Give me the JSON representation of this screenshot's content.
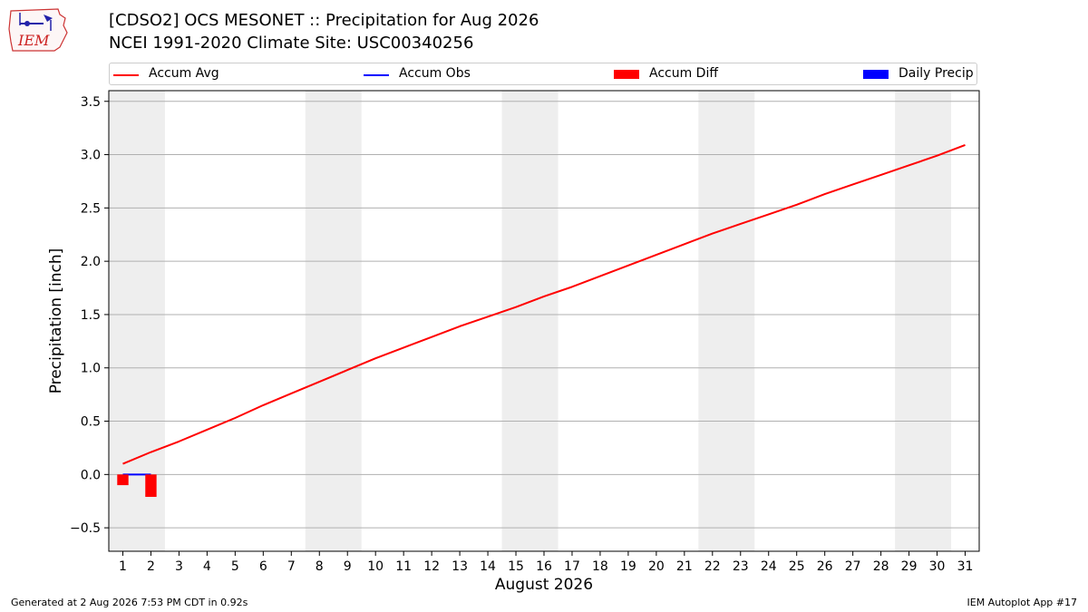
{
  "header": {
    "title_line1": "[CDSO2] OCS MESONET :: Precipitation for Aug 2026",
    "title_line2": "NCEI 1991-2020 Climate Site: USC00340256",
    "logo_text": "IEM"
  },
  "footer": {
    "left": "Generated at 2 Aug 2026 7:53 PM CDT in 0.92s",
    "right": "IEM Autoplot App #17"
  },
  "colors": {
    "accum_avg": "#ff0000",
    "accum_obs": "#0000ff",
    "accum_diff": "#ff0000",
    "daily_precip": "#0000ff",
    "weekend_shade": "#eeeeee",
    "grid": "#b0b0b0"
  },
  "chart_data": {
    "type": "line",
    "title": "[CDSO2] OCS MESONET :: Precipitation for Aug 2026",
    "subtitle": "NCEI 1991-2020 Climate Site: USC00340256",
    "xlabel": "August 2026",
    "ylabel": "Precipitation [inch]",
    "xlim": [
      0.5,
      31.5
    ],
    "ylim": [
      -0.72,
      3.6
    ],
    "yticks": [
      -0.5,
      0.0,
      0.5,
      1.0,
      1.5,
      2.0,
      2.5,
      3.0,
      3.5
    ],
    "ytick_labels": [
      "−0.5",
      "0.0",
      "0.5",
      "1.0",
      "1.5",
      "2.0",
      "2.5",
      "3.0",
      "3.5"
    ],
    "xticks": [
      1,
      2,
      3,
      4,
      5,
      6,
      7,
      8,
      9,
      10,
      11,
      12,
      13,
      14,
      15,
      16,
      17,
      18,
      19,
      20,
      21,
      22,
      23,
      24,
      25,
      26,
      27,
      28,
      29,
      30,
      31
    ],
    "grid": "horizontal",
    "legend_placement": "top",
    "weekend_ranges": [
      [
        0.5,
        2.5
      ],
      [
        7.5,
        9.5
      ],
      [
        14.5,
        16.5
      ],
      [
        21.5,
        23.5
      ],
      [
        28.5,
        30.5
      ]
    ],
    "series": [
      {
        "name": "Accum Avg",
        "kind": "line",
        "x": [
          1,
          2,
          3,
          4,
          5,
          6,
          7,
          8,
          9,
          10,
          11,
          12,
          13,
          14,
          15,
          16,
          17,
          18,
          19,
          20,
          21,
          22,
          23,
          24,
          25,
          26,
          27,
          28,
          29,
          30,
          31
        ],
        "values": [
          0.1,
          0.21,
          0.31,
          0.42,
          0.53,
          0.65,
          0.76,
          0.87,
          0.98,
          1.09,
          1.19,
          1.29,
          1.39,
          1.48,
          1.57,
          1.67,
          1.76,
          1.86,
          1.96,
          2.06,
          2.16,
          2.26,
          2.35,
          2.44,
          2.53,
          2.63,
          2.72,
          2.81,
          2.9,
          2.99,
          3.09
        ]
      },
      {
        "name": "Accum Obs",
        "kind": "line",
        "x": [
          1,
          2
        ],
        "values": [
          0.0,
          0.0
        ]
      },
      {
        "name": "Accum Diff",
        "kind": "bar",
        "x": [
          1,
          2
        ],
        "values": [
          -0.1,
          -0.21
        ]
      },
      {
        "name": "Daily Precip",
        "kind": "bar",
        "x": [
          1,
          2
        ],
        "values": [
          0.0,
          0.0
        ]
      }
    ]
  }
}
